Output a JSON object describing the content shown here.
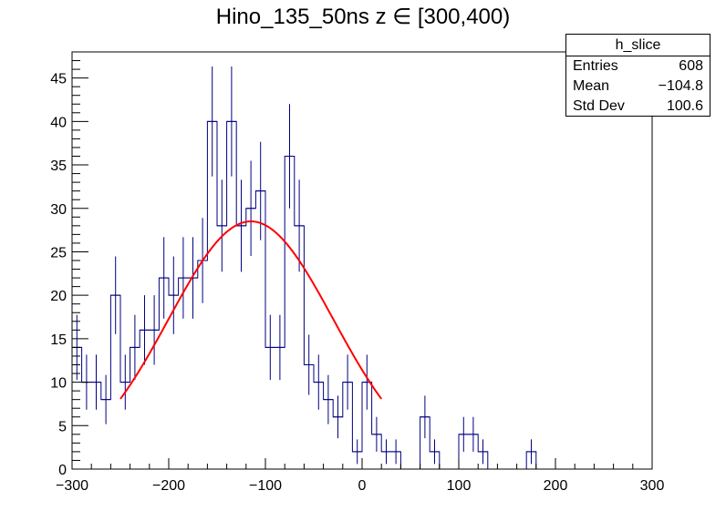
{
  "chart_data": {
    "type": "bar",
    "title": "Hino_135_50ns z  ∈ [300,400)",
    "xlabel": "",
    "ylabel": "",
    "xlim": [
      -300,
      300
    ],
    "ylim": [
      0,
      48
    ],
    "bin_edges_start": -300,
    "bin_width": 10,
    "x_ticks": [
      "−300",
      "−200",
      "−100",
      "0",
      "100",
      "200",
      "300"
    ],
    "x_tick_values": [
      -300,
      -200,
      -100,
      0,
      100,
      200,
      300
    ],
    "y_ticks": [
      "0",
      "5",
      "10",
      "15",
      "20",
      "25",
      "30",
      "35",
      "40",
      "45"
    ],
    "y_tick_values": [
      0,
      5,
      10,
      15,
      20,
      25,
      30,
      35,
      40,
      45
    ],
    "series": [
      {
        "values": [
          14,
          10,
          10,
          8,
          20,
          10,
          14,
          16,
          16,
          22,
          20,
          22,
          22,
          24,
          40,
          28,
          40,
          28,
          30,
          32,
          14,
          14,
          36,
          28,
          12,
          10,
          8,
          6,
          10,
          2,
          10,
          4,
          2,
          2,
          0,
          0,
          6,
          2,
          0,
          0,
          4,
          4,
          2,
          0,
          0,
          0,
          0,
          2,
          0,
          0,
          0,
          0,
          0,
          0,
          0,
          0,
          0,
          0,
          0,
          0
        ],
        "color": "#00007f"
      }
    ],
    "fit": {
      "function": "gaus",
      "color": "#ff0000",
      "x_range": [
        -250,
        20
      ],
      "constant": 28.5,
      "mean": -115,
      "sigma": 85
    }
  },
  "stats_box": {
    "name": "h_slice",
    "rows": [
      {
        "label": "Entries",
        "value": "608"
      },
      {
        "label": "Mean",
        "value": "−104.8"
      },
      {
        "label": "Std Dev",
        "value": "100.6"
      }
    ]
  }
}
